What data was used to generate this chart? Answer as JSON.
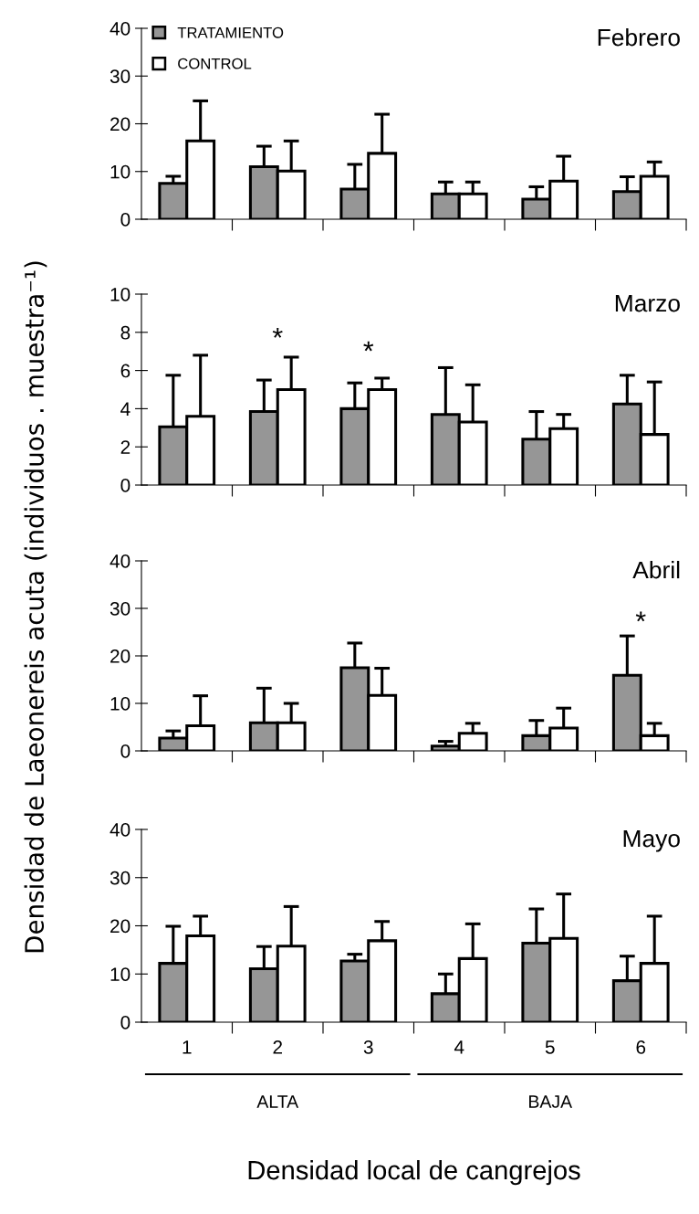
{
  "chart_data": [
    {
      "type": "bar",
      "title": "Febrero",
      "ylabel": "Densidad de Laeonereis acuta (individuos . muestra⁻¹)",
      "categories": [
        "1",
        "2",
        "3",
        "4",
        "5",
        "6"
      ],
      "ylim": [
        0,
        40
      ],
      "yticks": [
        0,
        10,
        20,
        30,
        40
      ],
      "legend": "top left",
      "tick_labels": "y",
      "series": [
        {
          "name": "TRATAMIENTO",
          "color": "#969696",
          "values": [
            7.5,
            11,
            6.3,
            5.3,
            4.2,
            5.8
          ],
          "errors": [
            [
              7.5,
              9
            ],
            [
              11,
              15.3
            ],
            [
              6.3,
              11.5
            ],
            [
              5.3,
              7.8
            ],
            [
              4.2,
              6.8
            ],
            [
              5.8,
              8.9
            ]
          ]
        },
        {
          "name": "CONTROL",
          "color": "#ffffff",
          "values": [
            16.4,
            10.1,
            13.8,
            5.3,
            8,
            9
          ],
          "errors": [
            [
              16.4,
              24.8
            ],
            [
              10.1,
              16.4
            ],
            [
              13.8,
              22
            ],
            [
              5.3,
              7.8
            ],
            [
              8,
              13.2
            ],
            [
              9,
              12
            ]
          ]
        }
      ]
    },
    {
      "type": "bar",
      "title": "Marzo",
      "categories": [
        "1",
        "2",
        "3",
        "4",
        "5",
        "6"
      ],
      "ylim": [
        0,
        10
      ],
      "yticks": [
        0,
        2,
        4,
        6,
        8,
        10
      ],
      "tick_labels": "y",
      "annotations": [
        "*",
        "*"
      ],
      "series": [
        {
          "color": "#969696",
          "values": [
            3.05,
            3.85,
            4.0,
            3.7,
            2.4,
            4.25
          ],
          "errors": [
            [
              3.05,
              5.75
            ],
            [
              3.85,
              5.5
            ],
            [
              4.0,
              5.35
            ],
            [
              3.7,
              6.15
            ],
            [
              2.4,
              3.85
            ],
            [
              4.25,
              5.75
            ]
          ]
        },
        {
          "color": "#ffffff",
          "values": [
            3.6,
            5.0,
            5.0,
            3.3,
            2.95,
            2.65
          ],
          "errors": [
            [
              3.6,
              6.8
            ],
            [
              5.0,
              6.7
            ],
            [
              5.0,
              5.6
            ],
            [
              3.3,
              5.25
            ],
            [
              2.95,
              3.7
            ],
            [
              2.65,
              5.4
            ]
          ]
        }
      ]
    },
    {
      "type": "bar",
      "title": "Abril",
      "categories": [
        "1",
        "2",
        "3",
        "4",
        "5",
        "6"
      ],
      "ylim": [
        0,
        40
      ],
      "yticks": [
        0,
        10,
        20,
        30,
        40
      ],
      "tick_labels": "y",
      "annotations": [
        "*"
      ],
      "series": [
        {
          "color": "#969696",
          "values": [
            2.7,
            5.9,
            17.5,
            1.0,
            3.2,
            15.9
          ],
          "errors": [
            [
              2.7,
              4.2
            ],
            [
              5.9,
              13.2
            ],
            [
              17.5,
              22.7
            ],
            [
              1.0,
              2.0
            ],
            [
              3.2,
              6.4
            ],
            [
              15.9,
              24.2
            ]
          ]
        },
        {
          "color": "#ffffff",
          "values": [
            5.3,
            5.9,
            11.7,
            3.7,
            4.8,
            3.2
          ],
          "errors": [
            [
              5.3,
              11.6
            ],
            [
              5.9,
              10
            ],
            [
              11.7,
              17.4
            ],
            [
              3.7,
              5.8
            ],
            [
              4.8,
              9.0
            ],
            [
              3.2,
              5.8
            ]
          ]
        }
      ]
    },
    {
      "type": "bar",
      "title": "Mayo",
      "xlabel": "Densidad local de cangrejos",
      "categories": [
        "1",
        "2",
        "3",
        "4",
        "5",
        "6"
      ],
      "ylim": [
        0,
        40
      ],
      "yticks": [
        0,
        10,
        20,
        30,
        40
      ],
      "annotations": [
        "ALTA",
        "BAJA"
      ],
      "series": [
        {
          "color": "#969696",
          "values": [
            12.2,
            11.1,
            12.7,
            5.9,
            16.4,
            8.6
          ],
          "errors": [
            [
              12.2,
              19.9
            ],
            [
              11.1,
              15.7
            ],
            [
              12.7,
              14.1
            ],
            [
              5.9,
              10
            ],
            [
              16.4,
              23.5
            ],
            [
              8.6,
              13.7
            ]
          ]
        },
        {
          "color": "#ffffff",
          "values": [
            17.9,
            15.8,
            16.9,
            13.2,
            17.4,
            12.2
          ],
          "errors": [
            [
              17.9,
              22
            ],
            [
              15.8,
              24
            ],
            [
              16.9,
              20.9
            ],
            [
              13.2,
              20.4
            ],
            [
              17.4,
              26.6
            ],
            [
              12.2,
              22
            ]
          ]
        }
      ]
    }
  ]
}
